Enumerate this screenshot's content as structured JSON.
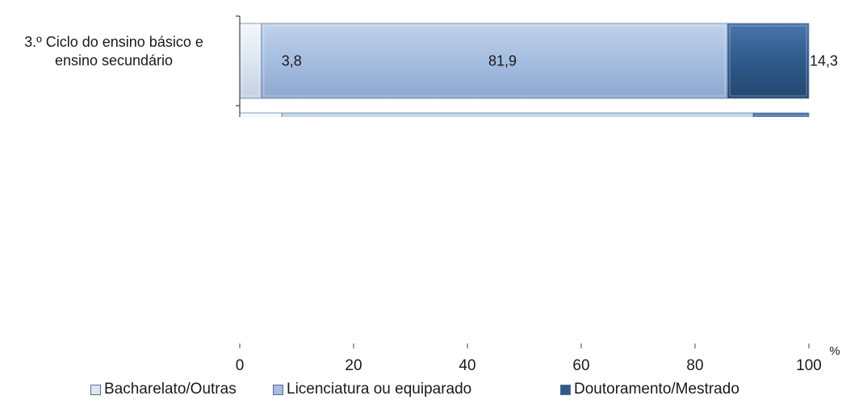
{
  "chart_data": {
    "type": "bar",
    "orientation": "horizontal",
    "stacked": true,
    "categories": [
      "3.º Ciclo do ensino básico e\nensino secundário",
      ""
    ],
    "series": [
      {
        "name": "Bacharelato/Outras",
        "values": [
          3.8,
          7.4
        ],
        "color": "#dce6f2",
        "labels": [
          "3,8",
          ""
        ]
      },
      {
        "name": "Licenciatura ou equiparado",
        "values": [
          81.9,
          82.8
        ],
        "color": "#a5bde0",
        "labels": [
          "81,9",
          ""
        ]
      },
      {
        "name": "Doutoramento/Mestrado",
        "values": [
          14.3,
          9.8
        ],
        "color": "#2f5a8c",
        "labels": [
          "14,3",
          ""
        ]
      }
    ],
    "xlim": [
      0,
      100
    ],
    "xticks": [
      "0",
      "20",
      "40",
      "60",
      "80",
      "100"
    ],
    "unit": "%",
    "legend_position": "bottom"
  }
}
